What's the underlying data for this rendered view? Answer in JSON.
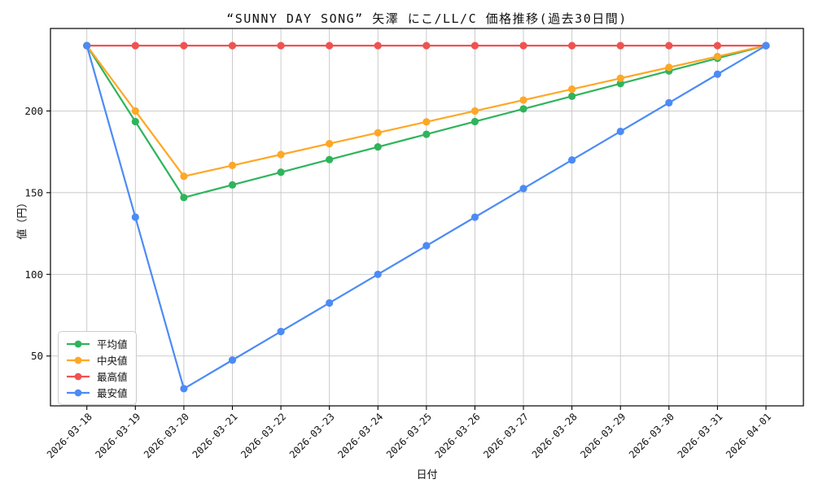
{
  "chart_data": {
    "type": "line",
    "title": "“SUNNY DAY SONG” 矢澤 にこ/LL/C 価格推移(過去30日間)",
    "xlabel": "日付",
    "ylabel": "値（円）",
    "x": [
      "2026-03-18",
      "2026-03-19",
      "2026-03-20",
      "2026-03-21",
      "2026-03-22",
      "2026-03-23",
      "2026-03-24",
      "2026-03-25",
      "2026-03-26",
      "2026-03-27",
      "2026-03-28",
      "2026-03-29",
      "2026-03-30",
      "2026-03-31",
      "2026-04-01"
    ],
    "series": [
      {
        "name": "平均値",
        "color": "#2fb45c",
        "values": [
          240,
          193.5,
          147,
          154.75,
          162.5,
          170.25,
          178,
          185.75,
          193.5,
          201.25,
          209,
          216.75,
          224.5,
          232.25,
          240
        ]
      },
      {
        "name": "中央値",
        "color": "#ffa726",
        "values": [
          240,
          200,
          160,
          166.67,
          173.33,
          180,
          186.67,
          193.33,
          200,
          206.67,
          213.33,
          220,
          226.67,
          233.33,
          240
        ]
      },
      {
        "name": "最高値",
        "color": "#ef5350",
        "values": [
          240,
          240,
          240,
          240,
          240,
          240,
          240,
          240,
          240,
          240,
          240,
          240,
          240,
          240,
          240
        ]
      },
      {
        "name": "最安値",
        "color": "#4c8bf5",
        "values": [
          240,
          135,
          30,
          47.5,
          65,
          82.5,
          100,
          117.5,
          135,
          152.5,
          170,
          187.5,
          205,
          222.5,
          240
        ]
      }
    ],
    "yticks": [
      50,
      100,
      150,
      200
    ],
    "ylim": [
      19.5,
      250.5
    ],
    "grid": true,
    "grid_color": "#c6c6c6",
    "frame_color": "#000000",
    "legend_position": "lower left",
    "marker": "circle"
  }
}
